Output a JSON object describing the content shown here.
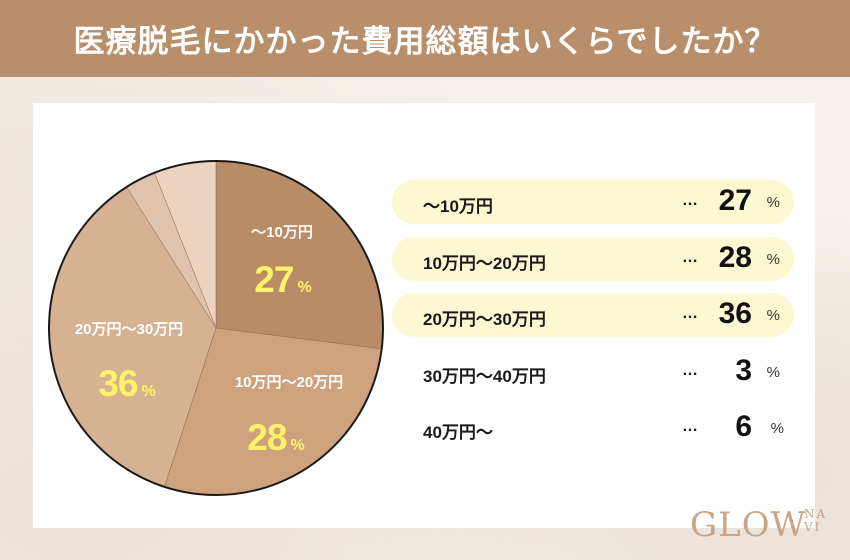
{
  "header": {
    "title": "医療脱毛にかかった費用総額はいくらでしたか？"
  },
  "colors": {
    "header_bg": "#b88e6b",
    "pct_text": "#fff36a",
    "legend_highlight": "#fdf8d2",
    "slices": [
      "#b98c68",
      "#cea27c",
      "#d6b293",
      "#e0c3ad",
      "#ecd3bf"
    ]
  },
  "chart_data": {
    "type": "pie",
    "title": "医療脱毛にかかった費用総額はいくらでしたか？",
    "start_angle": "12 o'clock, clockwise",
    "categories": [
      "〜10万円",
      "10万円〜20万円",
      "20万円〜30万円",
      "30万円〜40万円",
      "40万円〜"
    ],
    "values": [
      27,
      28,
      36,
      3,
      6
    ],
    "unit": "%",
    "legend_position": "right"
  },
  "pie_labels": [
    {
      "label": "〜10万円",
      "pct": "27",
      "unit": "%"
    },
    {
      "label": "10万円〜20万円",
      "pct": "28",
      "unit": "%"
    },
    {
      "label": "20万円〜30万円",
      "pct": "36",
      "unit": "%"
    }
  ],
  "legend": [
    {
      "label": "〜10万円",
      "dots": "…",
      "value": "27",
      "unit": "%",
      "highlight": true
    },
    {
      "label": "10万円〜20万円",
      "dots": "…",
      "value": "28",
      "unit": "%",
      "highlight": true
    },
    {
      "label": "20万円〜30万円",
      "dots": "…",
      "value": "36",
      "unit": "%",
      "highlight": true
    },
    {
      "label": "30万円〜40万円",
      "dots": "…",
      "value": "3",
      "unit": "%",
      "highlight": false
    },
    {
      "label": "40万円〜",
      "dots": "…",
      "value": "6",
      "unit": "%",
      "highlight": false
    }
  ],
  "logo": {
    "main": "GLOW",
    "sub_top": "NA",
    "sub_bottom": "VI"
  }
}
